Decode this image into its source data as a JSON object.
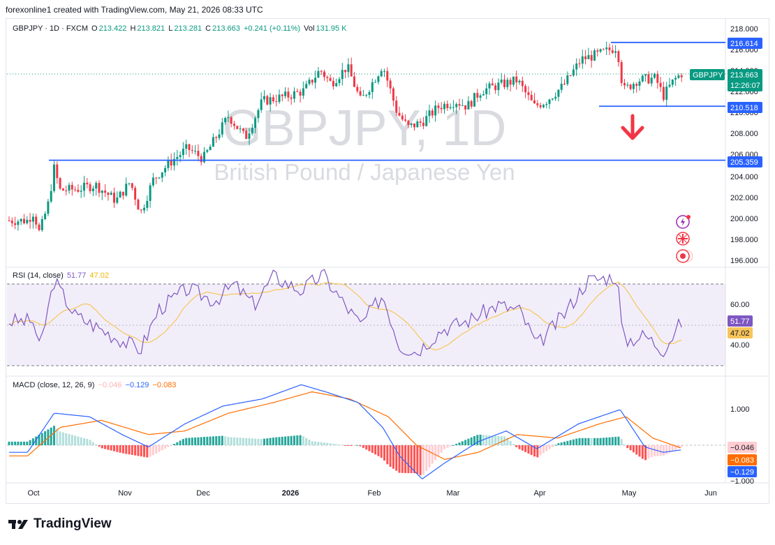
{
  "header": {
    "text": "forexonline1 created with TradingView.com, May 21, 2026 08:33 UTC"
  },
  "legend": {
    "symbol": "GBPJPY · 1D · FXCM",
    "o_label": "O",
    "o": "213.422",
    "h_label": "H",
    "h": "213.821",
    "l_label": "L",
    "l": "213.281",
    "c_label": "C",
    "c": "213.663",
    "change": "+0.241 (+0.11%)",
    "vol_label": "Vol",
    "vol": "131.95 K"
  },
  "watermark": {
    "line1": "GBPJPY, 1D",
    "line2": "British Pound / Japanese Yen"
  },
  "rsi_legend": {
    "title": "RSI (14, close)",
    "v1": "51.77",
    "v2": "47.02"
  },
  "macd_legend": {
    "title": "MACD (close, 12, 26, 9)",
    "v1": "−0.046",
    "v2": "−0.129",
    "v3": "−0.083"
  },
  "price_axis": {
    "ticks": [
      "218.000",
      "216.000",
      "214.000",
      "212.000",
      "210.000",
      "208.000",
      "206.000",
      "204.000",
      "202.000",
      "200.000",
      "198.000",
      "196.000"
    ]
  },
  "price_labels": {
    "level_high": "216.614",
    "symbol_tag": "GBPJPY",
    "last": "213.663",
    "countdown": "12:26:07",
    "level_mid": "210.518",
    "level_low": "205.359"
  },
  "rsi_axis": {
    "ticks": [
      "60.00",
      "40.00"
    ],
    "last": "51.77",
    "ma": "47.02"
  },
  "macd_axis": {
    "ticks": [
      "1.000",
      "−1.000"
    ],
    "hist": "−0.046",
    "signal": "−0.083",
    "macd": "−0.129"
  },
  "time_axis": {
    "labels": [
      "Oct",
      "Nov",
      "Dec",
      "2026",
      "Feb",
      "Mar",
      "Apr",
      "May",
      "Jun"
    ]
  },
  "branding": {
    "text": "TradingView"
  },
  "colors": {
    "up": "#089981",
    "down": "#f23645",
    "level": "#2962ff",
    "rsi": "#7e57c2",
    "rsi_ma": "#f7c55a",
    "macd": "#2962ff",
    "signal": "#ff6d00"
  },
  "chart_data": {
    "type": "candlestick",
    "symbol": "GBPJPY",
    "timeframe": "1D",
    "x_range": [
      "Sep 2025",
      "May 21, 2026"
    ],
    "ylim": [
      196,
      218
    ],
    "close_path": [
      {
        "x": "Sep 29",
        "y": 199.6
      },
      {
        "x": "Oct 1",
        "y": 200.4
      },
      {
        "x": "Oct 3",
        "y": 198.4
      },
      {
        "x": "Oct 6",
        "y": 201.2
      },
      {
        "x": "Oct 8",
        "y": 204.6
      },
      {
        "x": "Oct 10",
        "y": 202.5
      },
      {
        "x": "Oct 16",
        "y": 202.6
      },
      {
        "x": "Oct 22",
        "y": 203.0
      },
      {
        "x": "Oct 29",
        "y": 201.5
      },
      {
        "x": "Nov 3",
        "y": 203.3
      },
      {
        "x": "Nov 7",
        "y": 200.3
      },
      {
        "x": "Nov 12",
        "y": 203.6
      },
      {
        "x": "Nov 19",
        "y": 205.3
      },
      {
        "x": "Nov 25",
        "y": 206.5
      },
      {
        "x": "Dec 1",
        "y": 205.5
      },
      {
        "x": "Dec 5",
        "y": 207.3
      },
      {
        "x": "Dec 10",
        "y": 209.6
      },
      {
        "x": "Dec 16",
        "y": 207.5
      },
      {
        "x": "Dec 22",
        "y": 211.0
      },
      {
        "x": "Dec 31",
        "y": 211.5
      },
      {
        "x": "Jan 6",
        "y": 212.0
      },
      {
        "x": "Jan 12",
        "y": 214.0
      },
      {
        "x": "Jan 16",
        "y": 212.7
      },
      {
        "x": "Jan 22",
        "y": 214.3
      },
      {
        "x": "Jan 27",
        "y": 211.0
      },
      {
        "x": "Feb 2",
        "y": 213.5
      },
      {
        "x": "Feb 4",
        "y": 214.5
      },
      {
        "x": "Feb 9",
        "y": 210.0
      },
      {
        "x": "Feb 13",
        "y": 208.5
      },
      {
        "x": "Feb 18",
        "y": 209.0
      },
      {
        "x": "Feb 24",
        "y": 210.5
      },
      {
        "x": "Mar 2",
        "y": 211.0
      },
      {
        "x": "Mar 6",
        "y": 210.5
      },
      {
        "x": "Mar 11",
        "y": 212.0
      },
      {
        "x": "Mar 17",
        "y": 212.5
      },
      {
        "x": "Mar 24",
        "y": 213.0
      },
      {
        "x": "Mar 30",
        "y": 210.5
      },
      {
        "x": "Apr 3",
        "y": 211.0
      },
      {
        "x": "Apr 9",
        "y": 212.5
      },
      {
        "x": "Apr 15",
        "y": 215.0
      },
      {
        "x": "Apr 21",
        "y": 215.5
      },
      {
        "x": "Apr 27",
        "y": 216.2
      },
      {
        "x": "Apr 29",
        "y": 212.0
      },
      {
        "x": "May 4",
        "y": 213.0
      },
      {
        "x": "May 11",
        "y": 213.2
      },
      {
        "x": "May 14",
        "y": 211.5
      },
      {
        "x": "May 18",
        "y": 213.0
      },
      {
        "x": "May 21",
        "y": 213.663
      }
    ],
    "horizontal_levels": [
      216.614,
      210.518,
      205.359
    ],
    "last_ohlc": {
      "open": 213.422,
      "high": 213.821,
      "low": 213.281,
      "close": 213.663
    },
    "annotation": "down arrow below 210.518",
    "rsi": {
      "period": 14,
      "last": 51.77,
      "ma_last": 47.02,
      "ylim": [
        25,
        80
      ],
      "band": [
        30,
        70
      ],
      "points": [
        {
          "x": "Oct 1",
          "y": 52
        },
        {
          "x": "Oct 3",
          "y": 38
        },
        {
          "x": "Oct 8",
          "y": 72
        },
        {
          "x": "Oct 15",
          "y": 55
        },
        {
          "x": "Oct 29",
          "y": 44
        },
        {
          "x": "Nov 7",
          "y": 38
        },
        {
          "x": "Nov 14",
          "y": 58
        },
        {
          "x": "Nov 25",
          "y": 68
        },
        {
          "x": "Dec 5",
          "y": 62
        },
        {
          "x": "Dec 12",
          "y": 70
        },
        {
          "x": "Dec 19",
          "y": 60
        },
        {
          "x": "Dec 26",
          "y": 74
        },
        {
          "x": "Jan 5",
          "y": 67
        },
        {
          "x": "Jan 13",
          "y": 75
        },
        {
          "x": "Jan 20",
          "y": 62
        },
        {
          "x": "Jan 27",
          "y": 50
        },
        {
          "x": "Feb 4",
          "y": 65
        },
        {
          "x": "Feb 10",
          "y": 40
        },
        {
          "x": "Feb 16",
          "y": 37
        },
        {
          "x": "Feb 25",
          "y": 48
        },
        {
          "x": "Mar 6",
          "y": 52
        },
        {
          "x": "Mar 17",
          "y": 60
        },
        {
          "x": "Mar 25",
          "y": 57
        },
        {
          "x": "Mar 31",
          "y": 40
        },
        {
          "x": "Apr 9",
          "y": 55
        },
        {
          "x": "Apr 17",
          "y": 72
        },
        {
          "x": "Apr 27",
          "y": 74
        },
        {
          "x": "Apr 29",
          "y": 42
        },
        {
          "x": "May 7",
          "y": 45
        },
        {
          "x": "May 14",
          "y": 38
        },
        {
          "x": "May 21",
          "y": 51.77
        }
      ]
    },
    "macd": {
      "params": [
        12,
        26,
        9
      ],
      "histogram_last": -0.046,
      "macd_last": -0.129,
      "signal_last": -0.083,
      "ylim": [
        -1.3,
        1.9
      ],
      "macd_points": [
        {
          "x": "Sep 29",
          "y": -0.2
        },
        {
          "x": "Oct 8",
          "y": 0.9
        },
        {
          "x": "Oct 20",
          "y": 0.8
        },
        {
          "x": "Oct 31",
          "y": 0.3
        },
        {
          "x": "Nov 10",
          "y": -0.05
        },
        {
          "x": "Nov 24",
          "y": 0.6
        },
        {
          "x": "Dec 8",
          "y": 1.1
        },
        {
          "x": "Dec 22",
          "y": 1.3
        },
        {
          "x": "Jan 5",
          "y": 1.7
        },
        {
          "x": "Jan 14",
          "y": 1.5
        },
        {
          "x": "Jan 26",
          "y": 1.2
        },
        {
          "x": "Feb 4",
          "y": 0.5
        },
        {
          "x": "Feb 10",
          "y": -0.3
        },
        {
          "x": "Feb 18",
          "y": -0.95
        },
        {
          "x": "Feb 26",
          "y": -0.5
        },
        {
          "x": "Mar 10",
          "y": 0.1
        },
        {
          "x": "Mar 20",
          "y": 0.4
        },
        {
          "x": "Mar 31",
          "y": -0.1
        },
        {
          "x": "Apr 14",
          "y": 0.6
        },
        {
          "x": "Apr 28",
          "y": 1.0
        },
        {
          "x": "May 7",
          "y": -0.05
        },
        {
          "x": "May 14",
          "y": -0.2
        },
        {
          "x": "May 21",
          "y": -0.129
        }
      ],
      "signal_points": [
        {
          "x": "Sep 29",
          "y": -0.3
        },
        {
          "x": "Oct 10",
          "y": 0.5
        },
        {
          "x": "Oct 24",
          "y": 0.7
        },
        {
          "x": "Nov 10",
          "y": 0.3
        },
        {
          "x": "Nov 24",
          "y": 0.4
        },
        {
          "x": "Dec 10",
          "y": 0.9
        },
        {
          "x": "Dec 26",
          "y": 1.2
        },
        {
          "x": "Jan 9",
          "y": 1.5
        },
        {
          "x": "Jan 23",
          "y": 1.3
        },
        {
          "x": "Feb 6",
          "y": 0.8
        },
        {
          "x": "Feb 16",
          "y": 0.0
        },
        {
          "x": "Feb 26",
          "y": -0.4
        },
        {
          "x": "Mar 10",
          "y": -0.2
        },
        {
          "x": "Mar 24",
          "y": 0.3
        },
        {
          "x": "Apr 7",
          "y": 0.2
        },
        {
          "x": "Apr 21",
          "y": 0.6
        },
        {
          "x": "Apr 30",
          "y": 0.8
        },
        {
          "x": "May 10",
          "y": 0.2
        },
        {
          "x": "May 21",
          "y": -0.083
        }
      ]
    }
  }
}
